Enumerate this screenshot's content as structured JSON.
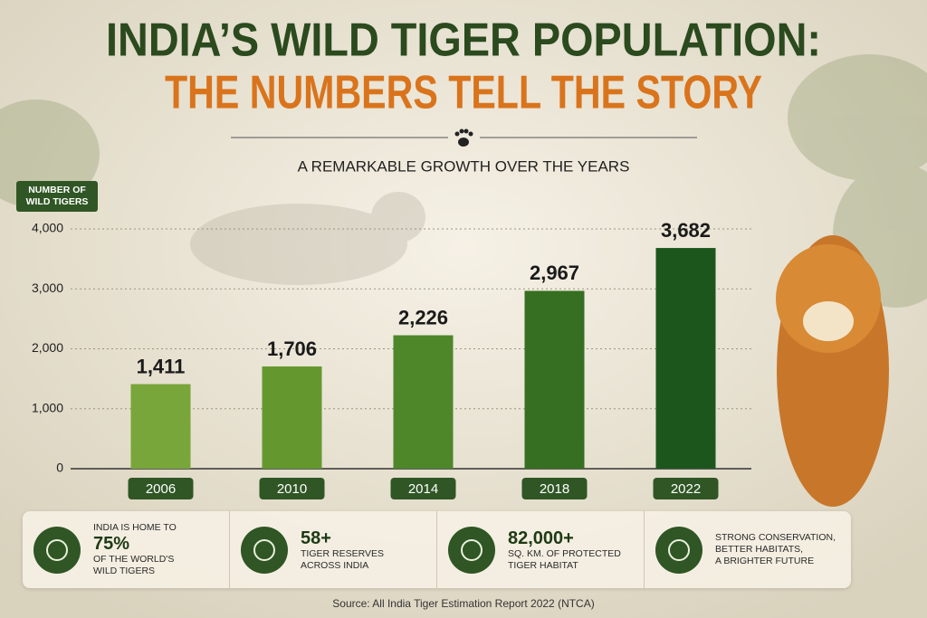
{
  "title": "INDIA’S WILD TIGER POPULATION:",
  "subtitle": "THE NUMBERS TELL THE STORY",
  "chart_data": {
    "type": "bar",
    "title": "A REMARKABLE GROWTH OVER THE YEARS",
    "y_label": "NUMBER OF WILD TIGERS",
    "categories": [
      "2006",
      "2010",
      "2014",
      "2018",
      "2022"
    ],
    "values": [
      1411,
      1706,
      2226,
      2967,
      3682
    ],
    "value_labels": [
      "1,411",
      "1,706",
      "2,226",
      "2,967",
      "3,682"
    ],
    "colors": [
      "#78a63a",
      "#64982f",
      "#4d8729",
      "#366f22",
      "#1d561c"
    ],
    "ylim": [
      0,
      4000
    ],
    "yticks": [
      0,
      {
        "value": 1000,
        "label": "1,000"
      },
      {
        "value": 2000,
        "label": "2,000"
      },
      {
        "value": 3000,
        "label": "3,000"
      },
      {
        "value": 4000,
        "label": "4,000"
      }
    ],
    "grid": true
  },
  "stats": [
    {
      "pre": "INDIA IS HOME TO",
      "figure": "75%",
      "text": [
        "OF THE WORLD'S",
        "WILD TIGERS"
      ]
    },
    {
      "figure": "58+",
      "text": [
        "TIGER RESERVES",
        "ACROSS INDIA"
      ]
    },
    {
      "figure": "82,000+",
      "text": [
        "SQ. KM. OF PROTECTED",
        "TIGER HABITAT"
      ]
    },
    {
      "text": [
        "STRONG CONSERVATION,",
        "BETTER HABITATS,",
        "A BRIGHTER FUTURE"
      ]
    }
  ],
  "source": "Source: All India Tiger Estimation Report 2022 (NTCA)"
}
